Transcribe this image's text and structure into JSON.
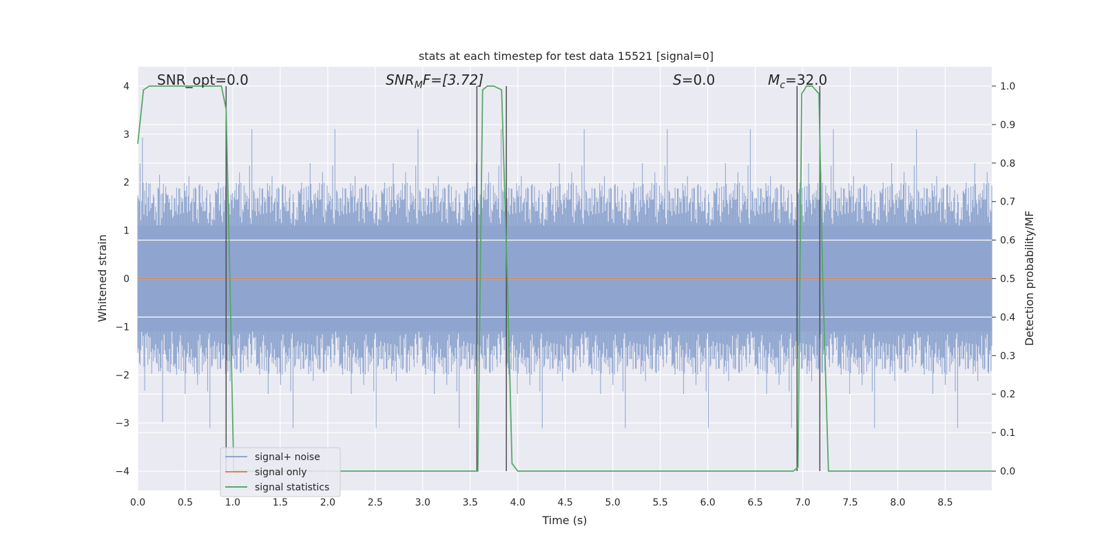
{
  "chart_data": {
    "type": "line",
    "title": "stats at each timestep for test data 15521 [signal=0]",
    "xlabel": "Time (s)",
    "ylabel_left": "Whitened strain",
    "ylabel_right": "Detection probability/MF",
    "xlim": [
      0.0,
      8.99
    ],
    "ylim_left": [
      -4.4,
      4.4
    ],
    "ylim_right": [
      -0.05,
      1.05
    ],
    "x_ticks": [
      "0.0",
      "0.5",
      "1.0",
      "1.5",
      "2.0",
      "2.5",
      "3.0",
      "3.5",
      "4.0",
      "4.5",
      "5.0",
      "5.5",
      "6.0",
      "6.5",
      "7.0",
      "7.5",
      "8.0",
      "8.5"
    ],
    "x_tick_values": [
      0.0,
      0.5,
      1.0,
      1.5,
      2.0,
      2.5,
      3.0,
      3.5,
      4.0,
      4.5,
      5.0,
      5.5,
      6.0,
      6.5,
      7.0,
      7.5,
      8.0,
      8.5
    ],
    "y_ticks_left": [
      "4",
      "3",
      "2",
      "1",
      "0",
      "−1",
      "−2",
      "−3",
      "−4"
    ],
    "y_tick_values_left": [
      4,
      3,
      2,
      1,
      0,
      -1,
      -2,
      -3,
      -4
    ],
    "y_ticks_right": [
      "1.0",
      "0.9",
      "0.8",
      "0.7",
      "0.6",
      "0.5",
      "0.4",
      "0.3",
      "0.2",
      "0.1",
      "0.0"
    ],
    "y_tick_values_right": [
      1.0,
      0.9,
      0.8,
      0.7,
      0.6,
      0.5,
      0.4,
      0.3,
      0.2,
      0.1,
      0.0
    ],
    "grid": true,
    "legend_placement": "lower-left",
    "legend": [
      "signal+ noise",
      "signal only",
      "signal statistics"
    ],
    "annotations": {
      "snr_opt": "SNR_opt=0.0",
      "snr_mf_main": "SNR",
      "snr_mf_sub": "M",
      "snr_mf_rest": "F=[3.72]",
      "s_main": "S",
      "s_rest": "=0.0",
      "mc_main": "M",
      "mc_sub": "c",
      "mc_rest": "=32.0"
    },
    "series": [
      {
        "name": "signal+ noise",
        "axis": "left",
        "color": "#8fa5cf",
        "description_envelope": "noisy whitened strain, roughly between -3.5 and 3.5"
      },
      {
        "name": "signal only",
        "axis": "left",
        "color": "#dd8452",
        "values_constant": 0.0
      },
      {
        "name": "signal statistics",
        "axis": "right",
        "color": "#55a868",
        "x": [
          0.0,
          0.06,
          0.12,
          0.5,
          0.88,
          0.93,
          0.97,
          1.01,
          1.05,
          3.55,
          3.58,
          3.63,
          3.68,
          3.75,
          3.83,
          3.89,
          3.94,
          4.0,
          6.9,
          6.95,
          6.99,
          7.04,
          7.1,
          7.17,
          7.21,
          7.27,
          7.33,
          8.99
        ],
        "values": [
          0.85,
          0.99,
          1.0,
          1.0,
          1.0,
          0.94,
          0.5,
          0.0,
          0.0,
          0.0,
          0.0,
          0.99,
          1.0,
          1.0,
          0.99,
          0.5,
          0.02,
          0.0,
          0.0,
          0.01,
          0.98,
          1.0,
          1.0,
          0.98,
          0.5,
          0.0,
          0.0,
          0.0
        ]
      }
    ],
    "vertical_markers_x": [
      0.93,
      3.57,
      3.88,
      6.94,
      7.18
    ]
  },
  "colors": {
    "plot_background": "#eaeaf2",
    "grid": "#ffffff",
    "vertical_markers": "#4d4d4d"
  }
}
